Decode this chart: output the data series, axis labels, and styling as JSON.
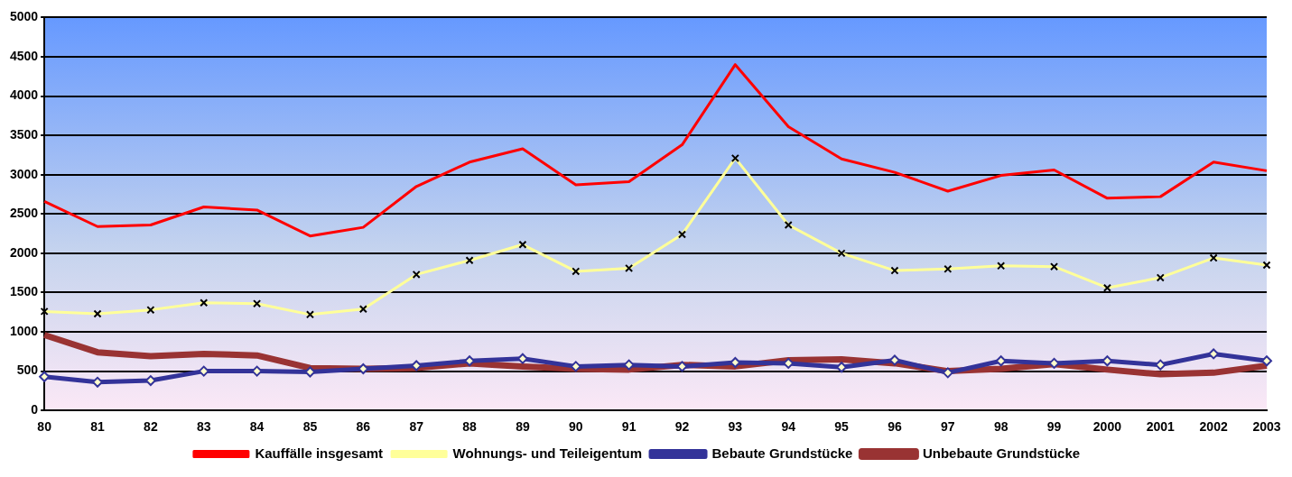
{
  "chart_data": {
    "type": "line",
    "categories": [
      "80",
      "81",
      "82",
      "83",
      "84",
      "85",
      "86",
      "87",
      "88",
      "89",
      "90",
      "91",
      "92",
      "93",
      "94",
      "95",
      "96",
      "97",
      "98",
      "99",
      "2000",
      "2001",
      "2002",
      "2003"
    ],
    "series": [
      {
        "name": "Unbebaute Grundstücke",
        "color": "#993333",
        "marker": "none",
        "values": [
          960,
          740,
          690,
          720,
          700,
          540,
          530,
          540,
          600,
          560,
          530,
          520,
          580,
          560,
          640,
          650,
          600,
          500,
          530,
          590,
          520,
          460,
          480,
          570
        ]
      },
      {
        "name": "Bebaute Grundstücke",
        "color": "#333399",
        "marker": "diamond",
        "values": [
          430,
          360,
          380,
          500,
          500,
          490,
          530,
          570,
          630,
          660,
          560,
          580,
          560,
          610,
          600,
          550,
          640,
          480,
          630,
          600,
          630,
          580,
          720,
          630
        ]
      },
      {
        "name": "Wohnungs- und Teileigentum",
        "color": "#ffff99",
        "marker": "cross",
        "values": [
          1260,
          1230,
          1280,
          1370,
          1360,
          1220,
          1290,
          1730,
          1910,
          2110,
          1770,
          1810,
          2240,
          3210,
          2360,
          2000,
          1780,
          1800,
          1840,
          1830,
          1560,
          1690,
          1940,
          1850
        ]
      },
      {
        "name": "Kauffälle insgesamt",
        "color": "#ff0000",
        "marker": "none",
        "values": [
          2660,
          2340,
          2360,
          2590,
          2550,
          2220,
          2330,
          2850,
          3160,
          3330,
          2870,
          2910,
          3380,
          4400,
          3610,
          3200,
          3030,
          2790,
          2990,
          3060,
          2700,
          2720,
          3160,
          3050
        ]
      }
    ],
    "ylim": [
      0,
      5000
    ],
    "yticks": [
      0,
      500,
      1000,
      1500,
      2000,
      2500,
      3000,
      3500,
      4000,
      4500,
      5000
    ],
    "grid": "y",
    "legend": "bottom"
  }
}
